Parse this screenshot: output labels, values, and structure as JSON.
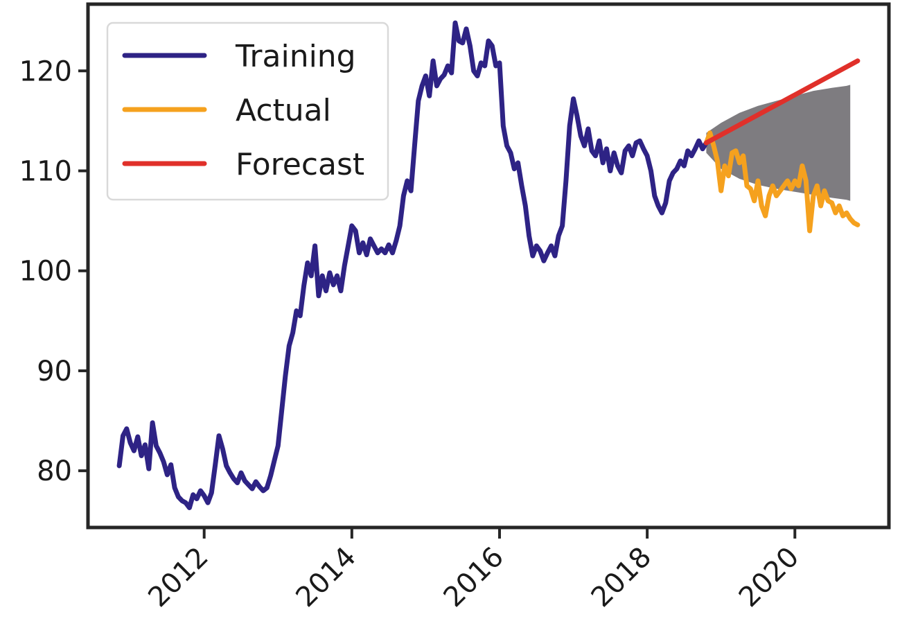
{
  "chart_data": {
    "type": "line",
    "title": "",
    "xlabel": "",
    "ylabel": "",
    "xlim": [
      2010.45,
      2021.25
    ],
    "ylim": [
      74.5,
      126.5
    ],
    "grid": false,
    "legend_position": "top-left",
    "x_ticks": [
      2012,
      2014,
      2016,
      2018,
      2020
    ],
    "x_tick_labels": [
      "2012",
      "2014",
      "2016",
      "2018",
      "2020"
    ],
    "y_ticks": [
      80,
      90,
      100,
      110,
      120
    ],
    "y_tick_labels": [
      "80",
      "90",
      "100",
      "110",
      "120"
    ],
    "legend": [
      "Training",
      "Actual",
      "Forecast"
    ],
    "colors": {
      "training": "#2e2385",
      "actual": "#f5a11e",
      "forecast": "#e0302a",
      "confidence_band": "#7e7c80",
      "axes": "#262626"
    },
    "series": [
      {
        "name": "Training",
        "x": [
          2010.85,
          2010.9,
          2010.95,
          2011.0,
          2011.05,
          2011.1,
          2011.15,
          2011.2,
          2011.25,
          2011.3,
          2011.35,
          2011.4,
          2011.45,
          2011.5,
          2011.55,
          2011.6,
          2011.65,
          2011.7,
          2011.75,
          2011.8,
          2011.85,
          2011.9,
          2011.95,
          2012.0,
          2012.05,
          2012.1,
          2012.15,
          2012.2,
          2012.25,
          2012.3,
          2012.35,
          2012.4,
          2012.45,
          2012.5,
          2012.55,
          2012.6,
          2012.65,
          2012.7,
          2012.75,
          2012.8,
          2012.85,
          2012.9,
          2012.95,
          2013.0,
          2013.05,
          2013.1,
          2013.15,
          2013.2,
          2013.25,
          2013.3,
          2013.35,
          2013.4,
          2013.45,
          2013.5,
          2013.55,
          2013.6,
          2013.65,
          2013.7,
          2013.75,
          2013.8,
          2013.85,
          2013.9,
          2013.95,
          2014.0,
          2014.05,
          2014.1,
          2014.15,
          2014.2,
          2014.25,
          2014.3,
          2014.35,
          2014.4,
          2014.45,
          2014.5,
          2014.55,
          2014.6,
          2014.65,
          2014.7,
          2014.75,
          2014.8,
          2014.85,
          2014.9,
          2014.95,
          2015.0,
          2015.05,
          2015.1,
          2015.15,
          2015.2,
          2015.25,
          2015.3,
          2015.35,
          2015.4,
          2015.45,
          2015.5,
          2015.55,
          2015.6,
          2015.65,
          2015.7,
          2015.75,
          2015.8,
          2015.85,
          2015.9,
          2015.95,
          2016.0,
          2016.05,
          2016.1,
          2016.15,
          2016.2,
          2016.25,
          2016.3,
          2016.35,
          2016.4,
          2016.45,
          2016.5,
          2016.55,
          2016.6,
          2016.65,
          2016.7,
          2016.75,
          2016.8,
          2016.85,
          2016.9,
          2016.95,
          2017.0,
          2017.05,
          2017.1,
          2017.15,
          2017.2,
          2017.25,
          2017.3,
          2017.35,
          2017.4,
          2017.45,
          2017.5,
          2017.55,
          2017.6,
          2017.65,
          2017.7,
          2017.75,
          2017.8,
          2017.85,
          2017.9,
          2017.95,
          2018.0,
          2018.05,
          2018.1,
          2018.15,
          2018.2,
          2018.25,
          2018.3,
          2018.35,
          2018.4,
          2018.45,
          2018.5,
          2018.55,
          2018.6,
          2018.65,
          2018.7,
          2018.75,
          2018.8
        ],
        "values": [
          80.5,
          83.5,
          84.2,
          82.8,
          82.0,
          83.4,
          81.5,
          82.6,
          80.2,
          84.8,
          82.5,
          81.8,
          80.9,
          79.6,
          80.6,
          78.3,
          77.4,
          77.0,
          76.8,
          76.3,
          77.6,
          77.2,
          78.0,
          77.5,
          76.8,
          77.8,
          80.6,
          83.5,
          82.2,
          80.5,
          79.8,
          79.2,
          78.8,
          79.8,
          79.0,
          78.6,
          78.2,
          78.9,
          78.4,
          78.0,
          78.3,
          79.5,
          81.0,
          82.5,
          86.0,
          89.5,
          92.5,
          93.8,
          96.0,
          95.5,
          98.5,
          100.8,
          99.5,
          102.5,
          97.5,
          99.5,
          98.0,
          99.8,
          98.6,
          99.5,
          98.0,
          100.5,
          102.5,
          104.5,
          104.0,
          101.8,
          102.8,
          101.6,
          103.2,
          102.5,
          101.8,
          102.2,
          101.8,
          102.6,
          101.8,
          103.0,
          104.5,
          107.5,
          109.0,
          108.0,
          112.5,
          117.0,
          118.5,
          119.5,
          117.5,
          121.0,
          118.5,
          119.2,
          119.6,
          120.5,
          119.8,
          124.8,
          123.0,
          122.8,
          124.2,
          122.5,
          120.0,
          119.5,
          120.8,
          120.5,
          123.0,
          122.5,
          120.5,
          120.8,
          114.5,
          112.5,
          111.8,
          110.2,
          110.8,
          108.5,
          106.5,
          103.5,
          101.5,
          102.5,
          102.0,
          101.0,
          101.8,
          102.5,
          101.5,
          103.5,
          104.5,
          109.0,
          114.5,
          117.2,
          115.5,
          113.5,
          112.5,
          114.2,
          112.0,
          111.5,
          113.0,
          110.8,
          112.2,
          110.0,
          111.8,
          110.5,
          109.8,
          112.0,
          112.5,
          111.5,
          112.8,
          113.0,
          112.2,
          111.5,
          110.0,
          107.5,
          106.5,
          105.8,
          106.8,
          109.0,
          109.8,
          110.2,
          111.0,
          110.5,
          112.0,
          111.5,
          112.2,
          113.0,
          112.2,
          112.8
        ]
      },
      {
        "name": "Actual",
        "x": [
          2018.8,
          2018.85,
          2018.9,
          2018.95,
          2019.0,
          2019.05,
          2019.1,
          2019.15,
          2019.2,
          2019.25,
          2019.3,
          2019.35,
          2019.4,
          2019.45,
          2019.5,
          2019.55,
          2019.6,
          2019.65,
          2019.7,
          2019.75,
          2019.8,
          2019.85,
          2019.9,
          2019.95,
          2020.0,
          2020.05,
          2020.1,
          2020.15,
          2020.2,
          2020.25,
          2020.3,
          2020.35,
          2020.4,
          2020.45,
          2020.5,
          2020.55,
          2020.6,
          2020.65,
          2020.7,
          2020.75,
          2020.8,
          2020.85
        ],
        "values": [
          112.8,
          113.8,
          112.5,
          111.0,
          108.0,
          110.5,
          109.5,
          111.8,
          112.0,
          110.8,
          111.5,
          108.5,
          108.2,
          107.0,
          109.0,
          106.5,
          105.5,
          107.5,
          108.5,
          107.5,
          108.0,
          108.5,
          109.0,
          108.2,
          109.0,
          108.5,
          110.5,
          109.0,
          104.0,
          107.5,
          108.5,
          106.5,
          108.0,
          107.0,
          106.8,
          105.8,
          106.5,
          105.5,
          105.8,
          105.2,
          104.8,
          104.6
        ]
      },
      {
        "name": "Forecast",
        "x": [
          2018.8,
          2020.85
        ],
        "values": [
          112.8,
          121.0
        ]
      }
    ],
    "confidence_band": {
      "x": [
        2018.8,
        2019.0,
        2019.25,
        2019.5,
        2019.75,
        2020.0,
        2020.25,
        2020.5,
        2020.7,
        2020.75
      ],
      "upper": [
        113.8,
        114.8,
        115.8,
        116.5,
        117.0,
        117.5,
        118.0,
        118.3,
        118.5,
        118.6
      ],
      "lower": [
        111.8,
        110.2,
        109.2,
        108.6,
        108.2,
        107.9,
        107.6,
        107.3,
        107.1,
        107.0
      ]
    }
  }
}
